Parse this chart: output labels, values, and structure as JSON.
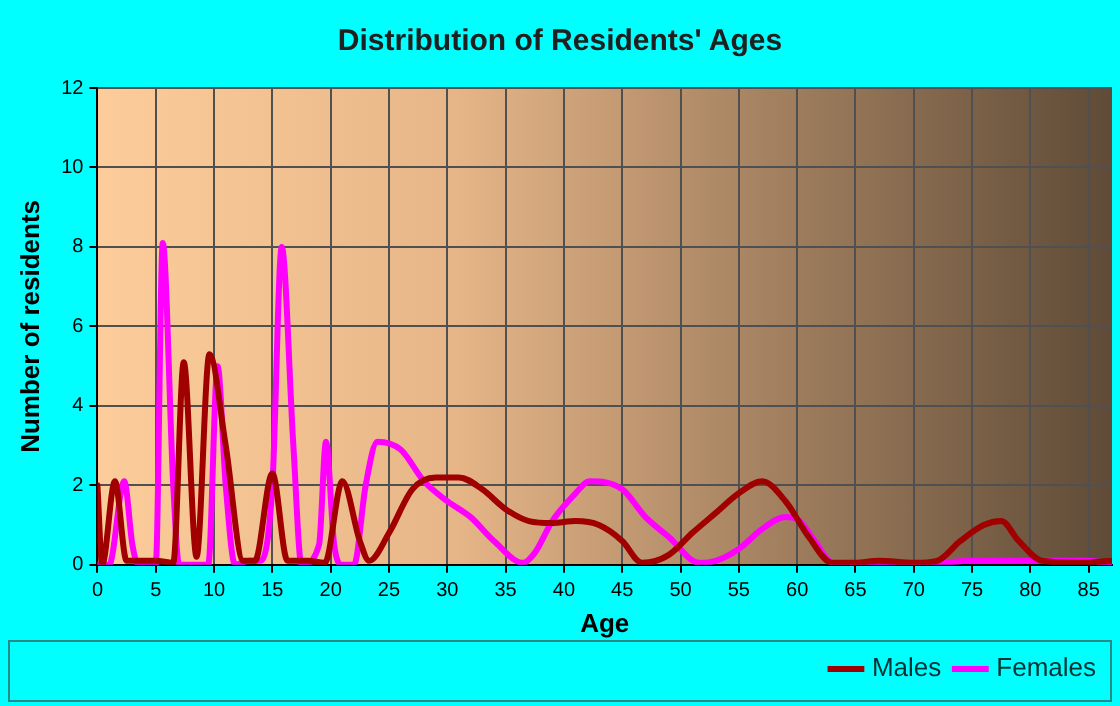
{
  "chart_data": {
    "type": "line",
    "title": "Distribution of Residents' Ages",
    "xlabel": "Age",
    "ylabel": "Number of residents",
    "xlim": [
      0,
      87
    ],
    "xticks": [
      0,
      5,
      10,
      15,
      20,
      25,
      30,
      35,
      40,
      45,
      50,
      55,
      60,
      65,
      70,
      75,
      80,
      85
    ],
    "ylim": [
      0,
      12
    ],
    "yticks": [
      0,
      2,
      4,
      6,
      8,
      10,
      12
    ],
    "grid": true,
    "legend": "bottom right",
    "marker": "none",
    "line_style": "solid",
    "series": [
      {
        "name": "Males",
        "color": "#a00000",
        "x": [
          0,
          0.4,
          1.5,
          2.5,
          5,
          6.5,
          7.4,
          8.5,
          9.6,
          11,
          12.5,
          13.5,
          15,
          16.3,
          18,
          19.5,
          21,
          22.5,
          23.3,
          25,
          27,
          29,
          31,
          33,
          35,
          37,
          39,
          41,
          43,
          45,
          46.7,
          49,
          51,
          53,
          55,
          57,
          59,
          61,
          63,
          65,
          67,
          70,
          72,
          74,
          76,
          77.5,
          79,
          81,
          84,
          87
        ],
        "values": [
          2,
          0,
          2.1,
          0.1,
          0.1,
          0.05,
          5.1,
          0.2,
          5.3,
          3,
          0.1,
          0.1,
          2.3,
          0.1,
          0.1,
          0.05,
          2.1,
          0.6,
          0.1,
          0.8,
          1.9,
          2.2,
          2.2,
          1.9,
          1.4,
          1.1,
          1.05,
          1.1,
          1,
          0.6,
          0.05,
          0.25,
          0.8,
          1.3,
          1.8,
          2.1,
          1.6,
          0.7,
          0.05,
          0.05,
          0.1,
          0.05,
          0.1,
          0.6,
          1,
          1.1,
          0.6,
          0.1,
          0.05,
          0.1
        ]
      },
      {
        "name": "Females",
        "color": "#ff00ff",
        "x": [
          0,
          1,
          2.3,
          3,
          3.5,
          5,
          5.6,
          6.5,
          7,
          9.5,
          10.3,
          11,
          11.8,
          13,
          14,
          15,
          15.8,
          16.8,
          17.5,
          19,
          19.6,
          20.3,
          21,
          22,
          23,
          24,
          26,
          28,
          30,
          32,
          34,
          36.5,
          37.5,
          39,
          41,
          42.2,
          45,
          47,
          49,
          51.6,
          53,
          55,
          57,
          59,
          60,
          61.5,
          63,
          65,
          70,
          75,
          80,
          85,
          87
        ],
        "values": [
          0,
          0,
          2.1,
          0.5,
          0,
          0,
          8.1,
          2,
          0,
          0,
          5,
          2,
          0,
          0.1,
          0.1,
          2,
          8,
          3,
          0,
          0.5,
          3.1,
          0.5,
          0,
          0,
          2,
          3.1,
          2.9,
          2.1,
          1.6,
          1.2,
          0.6,
          0.05,
          0.3,
          1.1,
          1.8,
          2.1,
          1.9,
          1.2,
          0.7,
          0.05,
          0.1,
          0.4,
          0.9,
          1.2,
          1.15,
          0.6,
          0.05,
          0,
          0,
          0.1,
          0.1,
          0.1,
          0
        ]
      }
    ]
  }
}
